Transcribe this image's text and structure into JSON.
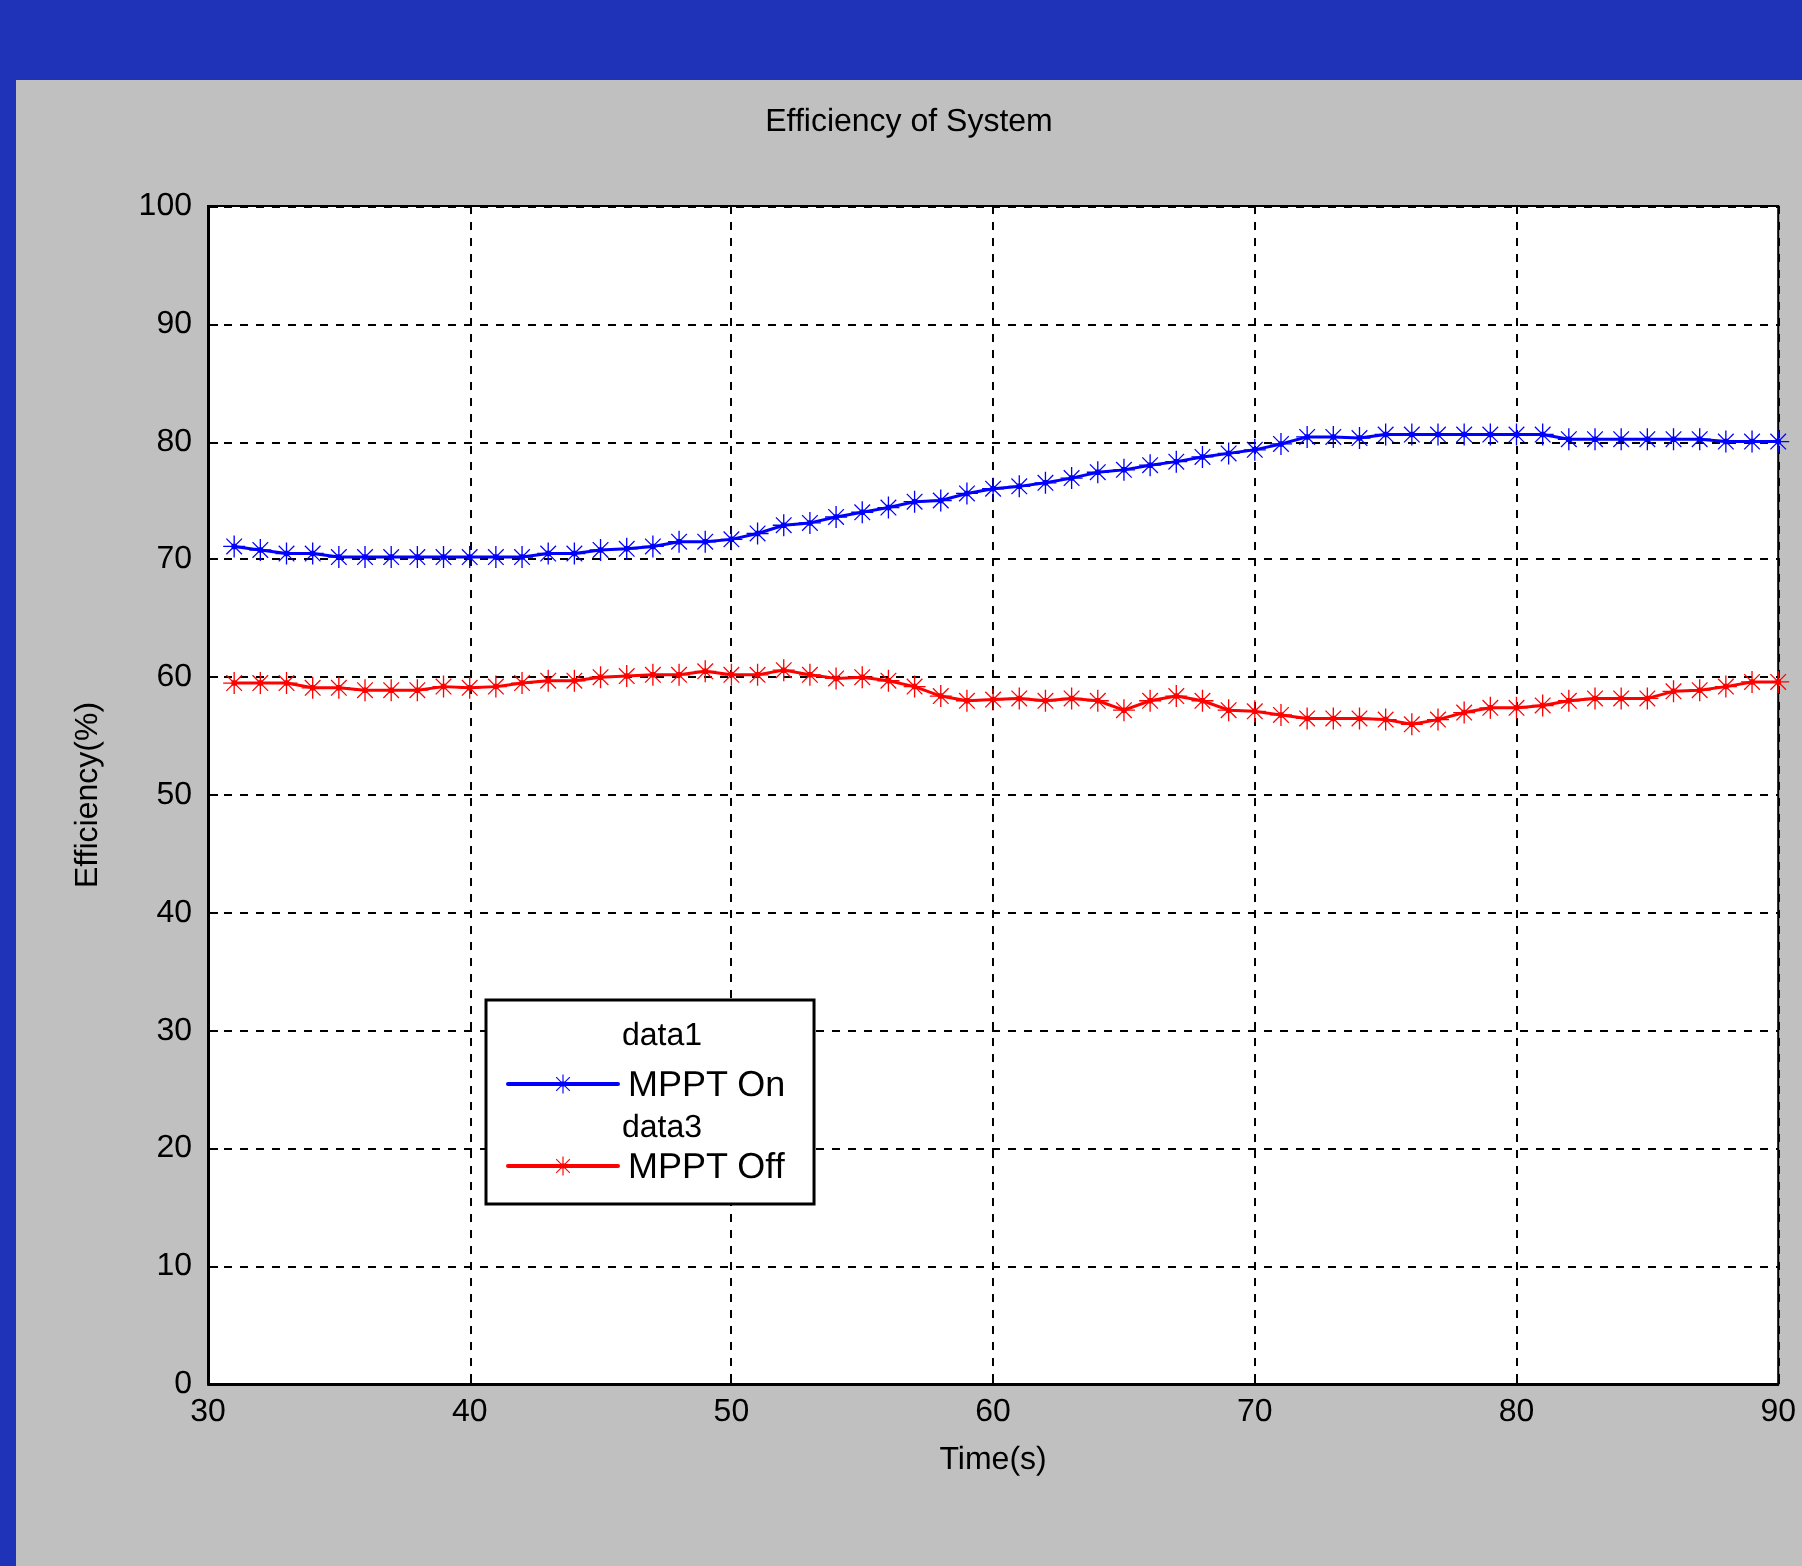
{
  "chart_data": {
    "type": "line",
    "title": "Efficiency of System",
    "xlabel": "Time(s)",
    "ylabel": "Efficiency(%)",
    "x": [
      31,
      32,
      33,
      34,
      35,
      36,
      37,
      38,
      39,
      40,
      41,
      42,
      43,
      44,
      45,
      46,
      47,
      48,
      49,
      50,
      51,
      52,
      53,
      54,
      55,
      56,
      57,
      58,
      59,
      60,
      61,
      62,
      63,
      64,
      65,
      66,
      67,
      68,
      69,
      70,
      71,
      72,
      73,
      74,
      75,
      76,
      77,
      78,
      79,
      80,
      81,
      82,
      83,
      84,
      85,
      86,
      87,
      88,
      89,
      90
    ],
    "series": [
      {
        "name": "MPPT On",
        "color": "#0000ff",
        "values": [
          71.1,
          70.8,
          70.5,
          70.5,
          70.2,
          70.2,
          70.2,
          70.2,
          70.2,
          70.2,
          70.2,
          70.2,
          70.5,
          70.5,
          70.8,
          70.9,
          71.1,
          71.5,
          71.5,
          71.7,
          72.2,
          72.9,
          73.1,
          73.6,
          74.0,
          74.4,
          74.9,
          75.0,
          75.6,
          76.0,
          76.2,
          76.5,
          76.9,
          77.4,
          77.6,
          78.0,
          78.3,
          78.7,
          79.0,
          79.3,
          79.8,
          80.4,
          80.4,
          80.3,
          80.6,
          80.6,
          80.6,
          80.6,
          80.6,
          80.6,
          80.6,
          80.2,
          80.2,
          80.2,
          80.2,
          80.2,
          80.2,
          80.0,
          80.0,
          80.0
        ]
      },
      {
        "name": "MPPT Off",
        "color": "#ff0000",
        "values": [
          59.5,
          59.5,
          59.5,
          59.1,
          59.1,
          58.9,
          58.9,
          58.9,
          59.2,
          59.1,
          59.2,
          59.5,
          59.7,
          59.7,
          60.0,
          60.1,
          60.2,
          60.2,
          60.5,
          60.2,
          60.2,
          60.6,
          60.2,
          59.9,
          60.0,
          59.7,
          59.2,
          58.4,
          58.0,
          58.1,
          58.2,
          58.0,
          58.2,
          58.0,
          57.2,
          58.0,
          58.4,
          58.0,
          57.2,
          57.1,
          56.8,
          56.5,
          56.5,
          56.5,
          56.4,
          56.0,
          56.4,
          57.0,
          57.4,
          57.4,
          57.6,
          58.0,
          58.2,
          58.2,
          58.2,
          58.8,
          58.9,
          59.2,
          59.6,
          59.6
        ]
      }
    ],
    "annotations": [
      "data1",
      "data3"
    ],
    "xlim": [
      30,
      90
    ],
    "xticks": [
      30,
      40,
      50,
      60,
      70,
      80,
      90
    ],
    "ylim": [
      0,
      100
    ],
    "yticks": [
      0,
      10,
      20,
      30,
      40,
      50,
      60,
      70,
      80,
      90,
      100
    ],
    "grid": true,
    "legend": "bottom left",
    "marker": "star",
    "line_style": "solid"
  }
}
